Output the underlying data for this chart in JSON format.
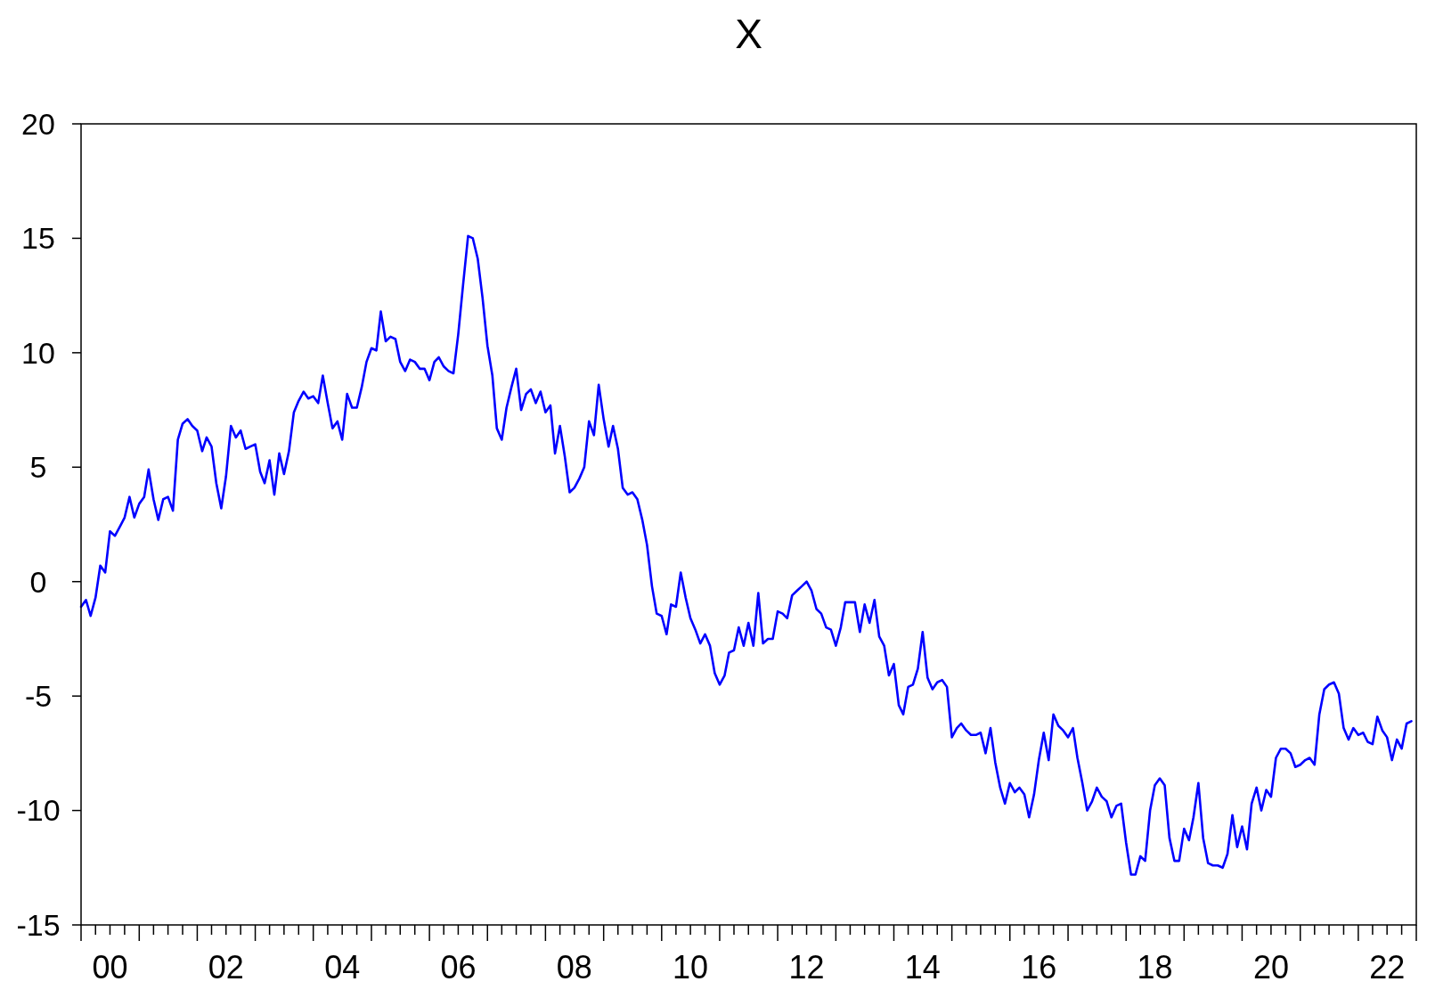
{
  "chart_data": {
    "type": "line",
    "title": "X",
    "x": [
      "2000-01",
      "2000-02",
      "2000-03",
      "2000-04",
      "2000-05",
      "2000-06",
      "2000-07",
      "2000-08",
      "2000-09",
      "2000-10",
      "2000-11",
      "2000-12",
      "2001-01",
      "2001-02",
      "2001-03",
      "2001-04",
      "2001-05",
      "2001-06",
      "2001-07",
      "2001-08",
      "2001-09",
      "2001-10",
      "2001-11",
      "2001-12",
      "2002-01",
      "2002-02",
      "2002-03",
      "2002-04",
      "2002-05",
      "2002-06",
      "2002-07",
      "2002-08",
      "2002-09",
      "2002-10",
      "2002-11",
      "2002-12",
      "2003-01",
      "2003-02",
      "2003-03",
      "2003-04",
      "2003-05",
      "2003-06",
      "2003-07",
      "2003-08",
      "2003-09",
      "2003-10",
      "2003-11",
      "2003-12",
      "2004-01",
      "2004-02",
      "2004-03",
      "2004-04",
      "2004-05",
      "2004-06",
      "2004-07",
      "2004-08",
      "2004-09",
      "2004-10",
      "2004-11",
      "2004-12",
      "2005-01",
      "2005-02",
      "2005-03",
      "2005-04",
      "2005-05",
      "2005-06",
      "2005-07",
      "2005-08",
      "2005-09",
      "2005-10",
      "2005-11",
      "2005-12",
      "2006-01",
      "2006-02",
      "2006-03",
      "2006-04",
      "2006-05",
      "2006-06",
      "2006-07",
      "2006-08",
      "2006-09",
      "2006-10",
      "2006-11",
      "2006-12",
      "2007-01",
      "2007-02",
      "2007-03",
      "2007-04",
      "2007-05",
      "2007-06",
      "2007-07",
      "2007-08",
      "2007-09",
      "2007-10",
      "2007-11",
      "2007-12",
      "2008-01",
      "2008-02",
      "2008-03",
      "2008-04",
      "2008-05",
      "2008-06",
      "2008-07",
      "2008-08",
      "2008-09",
      "2008-10",
      "2008-11",
      "2008-12",
      "2009-01",
      "2009-02",
      "2009-03",
      "2009-04",
      "2009-05",
      "2009-06",
      "2009-07",
      "2009-08",
      "2009-09",
      "2009-10",
      "2009-11",
      "2009-12",
      "2010-01",
      "2010-02",
      "2010-03",
      "2010-04",
      "2010-05",
      "2010-06",
      "2010-07",
      "2010-08",
      "2010-09",
      "2010-10",
      "2010-11",
      "2010-12",
      "2011-01",
      "2011-02",
      "2011-03",
      "2011-04",
      "2011-05",
      "2011-06",
      "2011-07",
      "2011-08",
      "2011-09",
      "2011-10",
      "2011-11",
      "2011-12",
      "2012-01",
      "2012-02",
      "2012-03",
      "2012-04",
      "2012-05",
      "2012-06",
      "2012-07",
      "2012-08",
      "2012-09",
      "2012-10",
      "2012-11",
      "2012-12",
      "2013-01",
      "2013-02",
      "2013-03",
      "2013-04",
      "2013-05",
      "2013-06",
      "2013-07",
      "2013-08",
      "2013-09",
      "2013-10",
      "2013-11",
      "2013-12",
      "2014-01",
      "2014-02",
      "2014-03",
      "2014-04",
      "2014-05",
      "2014-06",
      "2014-07",
      "2014-08",
      "2014-09",
      "2014-10",
      "2014-11",
      "2014-12",
      "2015-01",
      "2015-02",
      "2015-03",
      "2015-04",
      "2015-05",
      "2015-06",
      "2015-07",
      "2015-08",
      "2015-09",
      "2015-10",
      "2015-11",
      "2015-12",
      "2016-01",
      "2016-02",
      "2016-03",
      "2016-04",
      "2016-05",
      "2016-06",
      "2016-07",
      "2016-08",
      "2016-09",
      "2016-10",
      "2016-11",
      "2016-12",
      "2017-01",
      "2017-02",
      "2017-03",
      "2017-04",
      "2017-05",
      "2017-06",
      "2017-07",
      "2017-08",
      "2017-09",
      "2017-10",
      "2017-11",
      "2017-12",
      "2018-01",
      "2018-02",
      "2018-03",
      "2018-04",
      "2018-05",
      "2018-06",
      "2018-07",
      "2018-08",
      "2018-09",
      "2018-10",
      "2018-11",
      "2018-12",
      "2019-01",
      "2019-02",
      "2019-03",
      "2019-04",
      "2019-05",
      "2019-06",
      "2019-07",
      "2019-08",
      "2019-09",
      "2019-10",
      "2019-11",
      "2019-12",
      "2020-01",
      "2020-02",
      "2020-03",
      "2020-04",
      "2020-05",
      "2020-06",
      "2020-07",
      "2020-08",
      "2020-09",
      "2020-10",
      "2020-11",
      "2020-12",
      "2021-01",
      "2021-02",
      "2021-03",
      "2021-04",
      "2021-05",
      "2021-06",
      "2021-07",
      "2021-08",
      "2021-09",
      "2021-10",
      "2021-11",
      "2021-12",
      "2022-01",
      "2022-02",
      "2022-03",
      "2022-04",
      "2022-05",
      "2022-06",
      "2022-07",
      "2022-08",
      "2022-09",
      "2022-10",
      "2022-11",
      "2022-12"
    ],
    "series": [
      {
        "color": "#0000ff",
        "values": [
          -1.1,
          -0.8,
          -1.5,
          -0.7,
          0.7,
          0.4,
          2.2,
          2.0,
          2.4,
          2.8,
          3.7,
          2.8,
          3.4,
          3.7,
          4.9,
          3.6,
          2.7,
          3.6,
          3.7,
          3.1,
          6.2,
          6.9,
          7.1,
          6.8,
          6.6,
          5.7,
          6.3,
          5.9,
          4.3,
          3.2,
          4.6,
          6.8,
          6.3,
          6.6,
          5.8,
          5.9,
          6.0,
          4.8,
          4.3,
          5.3,
          3.8,
          5.6,
          4.7,
          5.7,
          7.4,
          7.9,
          8.3,
          8.0,
          8.1,
          7.8,
          9.0,
          7.8,
          6.7,
          7.0,
          6.2,
          8.2,
          7.6,
          7.6,
          8.5,
          9.6,
          10.2,
          10.1,
          11.8,
          10.5,
          10.7,
          10.6,
          9.6,
          9.2,
          9.7,
          9.6,
          9.3,
          9.3,
          8.8,
          9.6,
          9.8,
          9.4,
          9.2,
          9.1,
          10.8,
          13.0,
          15.1,
          15.0,
          14.1,
          12.4,
          10.3,
          9.0,
          6.7,
          6.2,
          7.6,
          8.5,
          9.3,
          7.5,
          8.2,
          8.4,
          7.8,
          8.3,
          7.4,
          7.7,
          5.6,
          6.8,
          5.5,
          3.9,
          4.1,
          4.5,
          5.0,
          7.0,
          6.4,
          8.6,
          7.1,
          5.9,
          6.8,
          5.8,
          4.1,
          3.8,
          3.9,
          3.6,
          2.7,
          1.6,
          -0.2,
          -1.4,
          -1.5,
          -2.3,
          -1.0,
          -1.1,
          0.4,
          -0.7,
          -1.6,
          -2.1,
          -2.7,
          -2.3,
          -2.8,
          -4.0,
          -4.5,
          -4.1,
          -3.1,
          -3.0,
          -2.0,
          -2.8,
          -1.8,
          -2.8,
          -0.5,
          -2.7,
          -2.5,
          -2.5,
          -1.3,
          -1.4,
          -1.6,
          -0.6,
          -0.4,
          -0.2,
          0.0,
          -0.4,
          -1.2,
          -1.4,
          -2.0,
          -2.1,
          -2.8,
          -2.0,
          -0.9,
          -0.9,
          -0.9,
          -2.2,
          -1.0,
          -1.8,
          -0.8,
          -2.4,
          -2.8,
          -4.1,
          -3.6,
          -5.4,
          -5.8,
          -4.6,
          -4.5,
          -3.8,
          -2.2,
          -4.2,
          -4.7,
          -4.4,
          -4.3,
          -4.6,
          -6.8,
          -6.4,
          -6.2,
          -6.5,
          -6.7,
          -6.7,
          -6.6,
          -7.5,
          -6.4,
          -7.9,
          -9.0,
          -9.7,
          -8.8,
          -9.2,
          -9.0,
          -9.3,
          -10.3,
          -9.3,
          -7.8,
          -6.6,
          -7.8,
          -5.8,
          -6.3,
          -6.5,
          -6.8,
          -6.4,
          -7.7,
          -8.8,
          -10.0,
          -9.6,
          -9.0,
          -9.4,
          -9.6,
          -10.3,
          -9.8,
          -9.7,
          -11.4,
          -12.8,
          -12.8,
          -12.0,
          -12.2,
          -10.0,
          -8.9,
          -8.6,
          -8.9,
          -11.2,
          -12.2,
          -12.2,
          -10.8,
          -11.3,
          -10.3,
          -8.8,
          -11.2,
          -12.3,
          -12.4,
          -12.4,
          -12.5,
          -11.9,
          -10.2,
          -11.6,
          -10.7,
          -11.7,
          -9.7,
          -9.0,
          -10.0,
          -9.1,
          -9.4,
          -7.7,
          -7.3,
          -7.3,
          -7.5,
          -8.1,
          -8.0,
          -7.8,
          -7.7,
          -8.0,
          -5.8,
          -4.7,
          -4.5,
          -4.4,
          -4.9,
          -6.4,
          -6.9,
          -6.4,
          -6.7,
          -6.6,
          -7.0,
          -7.1,
          -5.9,
          -6.5,
          -6.8,
          -7.8,
          -6.9,
          -7.3,
          -6.2,
          -6.1
        ]
      }
    ],
    "xlim": [
      "2000-01",
      "2023-01"
    ],
    "xticks": [
      {
        "value": "2000-07",
        "label": "00"
      },
      {
        "value": "2002-07",
        "label": "02"
      },
      {
        "value": "2004-07",
        "label": "04"
      },
      {
        "value": "2006-07",
        "label": "06"
      },
      {
        "value": "2008-07",
        "label": "08"
      },
      {
        "value": "2010-07",
        "label": "10"
      },
      {
        "value": "2012-07",
        "label": "12"
      },
      {
        "value": "2014-07",
        "label": "14"
      },
      {
        "value": "2016-07",
        "label": "16"
      },
      {
        "value": "2018-07",
        "label": "18"
      },
      {
        "value": "2020-07",
        "label": "20"
      },
      {
        "value": "2022-07",
        "label": "22"
      }
    ],
    "ylim": [
      -15,
      20
    ],
    "yticks": [
      -15,
      -10,
      -5,
      0,
      5,
      10,
      15,
      20
    ],
    "grid": false,
    "line_style": "solid"
  }
}
